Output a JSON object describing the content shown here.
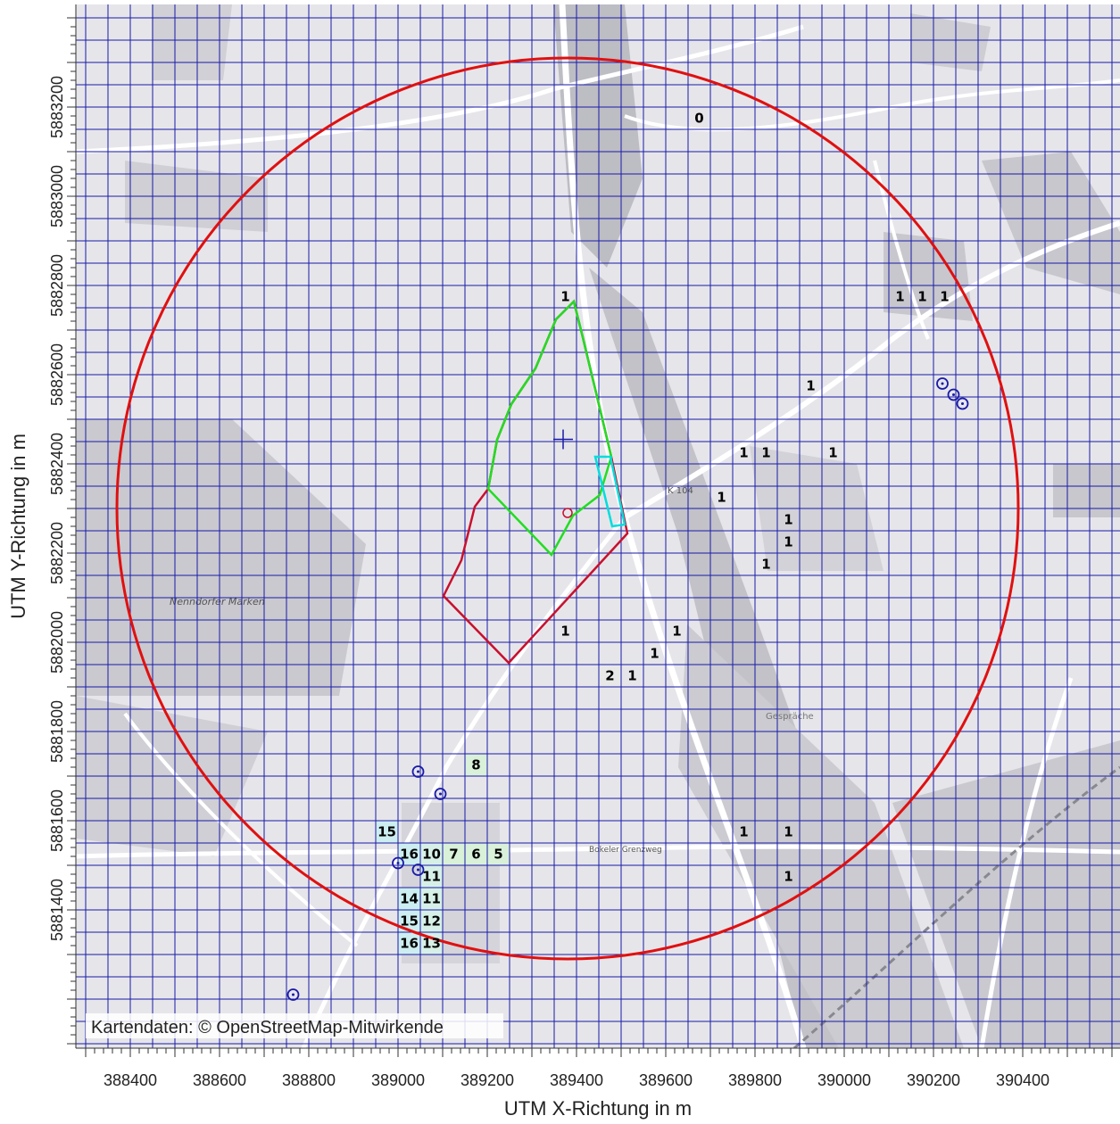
{
  "map": {
    "x_axis_title": "UTM X-Richtung in m",
    "y_axis_title": "UTM Y-Richtung in m",
    "attribution": "Kartendaten: © OpenStreetMap-Mitwirkende",
    "x_ticks": [
      388400,
      388600,
      388800,
      389000,
      389200,
      389400,
      389600,
      389800,
      390000,
      390200,
      390400
    ],
    "y_ticks": [
      5881400,
      5881600,
      5881800,
      5882000,
      5882200,
      5882400,
      5882600,
      5882800,
      5883000,
      5883200
    ],
    "x_tick_labels": [
      "388400",
      "388600",
      "388800",
      "389000",
      "389200",
      "389400",
      "389600",
      "389800",
      "390000",
      "390200",
      "390400"
    ],
    "y_tick_labels": [
      "5881400",
      "5881600",
      "5881800",
      "5882000",
      "5882200",
      "5882400",
      "5882600",
      "5882800",
      "5883000",
      "5883200"
    ],
    "grid_color": "#1a1aa8",
    "circle_color": "#e01010",
    "outline_red": "#c8102e",
    "outline_green": "#22dd22",
    "outline_cyan": "#00dddd",
    "source_center": {
      "x": 389370,
      "y": 5882455
    },
    "source_point": {
      "x": 389380,
      "y": 5882290
    },
    "assessment_circle": {
      "cx": 389380,
      "cy": 5882300,
      "r": 1010
    },
    "street_labels": [
      "Nenndorfer Marken",
      "K 104",
      "Bokeler Grenzweg",
      "Gespräche"
    ],
    "cell_values": [
      {
        "x": 389675,
        "y": 5883175,
        "v": "0"
      },
      {
        "x": 389375,
        "y": 5882775,
        "v": "1"
      },
      {
        "x": 390125,
        "y": 5882775,
        "v": "1"
      },
      {
        "x": 390175,
        "y": 5882775,
        "v": "1"
      },
      {
        "x": 390225,
        "y": 5882775,
        "v": "1"
      },
      {
        "x": 389925,
        "y": 5882575,
        "v": "1"
      },
      {
        "x": 389775,
        "y": 5882425,
        "v": "1"
      },
      {
        "x": 389825,
        "y": 5882425,
        "v": "1"
      },
      {
        "x": 389975,
        "y": 5882425,
        "v": "1"
      },
      {
        "x": 389725,
        "y": 5882325,
        "v": "1"
      },
      {
        "x": 389875,
        "y": 5882275,
        "v": "1"
      },
      {
        "x": 389875,
        "y": 5882225,
        "v": "1"
      },
      {
        "x": 389825,
        "y": 5882175,
        "v": "1"
      },
      {
        "x": 389375,
        "y": 5882025,
        "v": "1"
      },
      {
        "x": 389625,
        "y": 5882025,
        "v": "1"
      },
      {
        "x": 389575,
        "y": 5881975,
        "v": "1"
      },
      {
        "x": 389475,
        "y": 5881925,
        "v": "2"
      },
      {
        "x": 389525,
        "y": 5881925,
        "v": "1"
      },
      {
        "x": 389175,
        "y": 5881725,
        "v": "8"
      },
      {
        "x": 388975,
        "y": 5881575,
        "v": "15"
      },
      {
        "x": 389025,
        "y": 5881525,
        "v": "16"
      },
      {
        "x": 389075,
        "y": 5881525,
        "v": "10"
      },
      {
        "x": 389125,
        "y": 5881525,
        "v": "7"
      },
      {
        "x": 389175,
        "y": 5881525,
        "v": "6"
      },
      {
        "x": 389225,
        "y": 5881525,
        "v": "5"
      },
      {
        "x": 389075,
        "y": 5881475,
        "v": "11"
      },
      {
        "x": 389025,
        "y": 5881425,
        "v": "14"
      },
      {
        "x": 389075,
        "y": 5881425,
        "v": "11"
      },
      {
        "x": 389025,
        "y": 5881375,
        "v": "15"
      },
      {
        "x": 389075,
        "y": 5881375,
        "v": "12"
      },
      {
        "x": 389025,
        "y": 5881325,
        "v": "16"
      },
      {
        "x": 389075,
        "y": 5881325,
        "v": "13"
      },
      {
        "x": 389775,
        "y": 5881575,
        "v": "1"
      },
      {
        "x": 389875,
        "y": 5881575,
        "v": "1"
      },
      {
        "x": 389875,
        "y": 5881475,
        "v": "1"
      }
    ],
    "receptors": [
      {
        "x": 390220,
        "y": 5882580
      },
      {
        "x": 390245,
        "y": 5882555
      },
      {
        "x": 390265,
        "y": 5882535
      },
      {
        "x": 389045,
        "y": 5881710
      },
      {
        "x": 389095,
        "y": 5881660
      },
      {
        "x": 389000,
        "y": 5881505
      },
      {
        "x": 389045,
        "y": 5881490
      },
      {
        "x": 388765,
        "y": 5881210
      }
    ]
  }
}
